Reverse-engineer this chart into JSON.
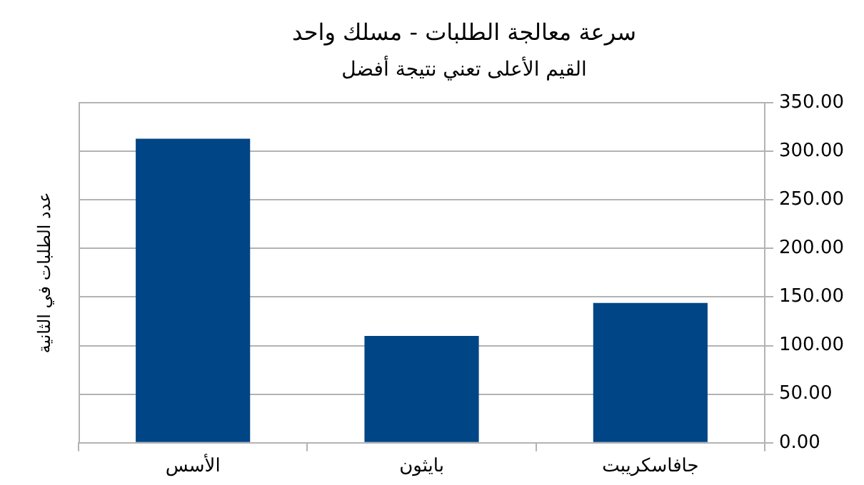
{
  "chart_data": {
    "type": "bar",
    "title": "سرعة معالجة الطلبات - مسلك واحد",
    "subtitle": "القيم الأعلى تعني نتيجة أفضل",
    "ylabel": "عدد الطلبات في الثانية",
    "categories": [
      "الأسس",
      "بايثون",
      "جافاسكريبت"
    ],
    "values": [
      313,
      110,
      144
    ],
    "color": "#004586",
    "ylim": [
      0,
      350
    ],
    "yticks": [
      {
        "value": 0,
        "label": "0.00"
      },
      {
        "value": 50,
        "label": "50.00"
      },
      {
        "value": 100,
        "label": "100.00"
      },
      {
        "value": 150,
        "label": "150.00"
      },
      {
        "value": 200,
        "label": "200.00"
      },
      {
        "value": 250,
        "label": "250.00"
      },
      {
        "value": 300,
        "label": "300.00"
      },
      {
        "value": 350,
        "label": "350.00"
      }
    ],
    "grid": "y",
    "legend": false
  }
}
